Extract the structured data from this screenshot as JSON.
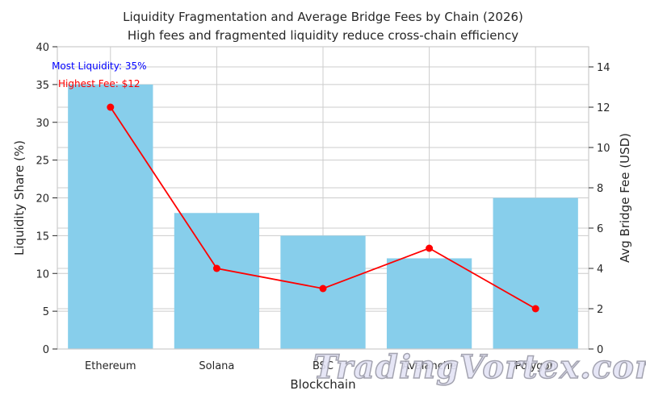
{
  "chart_data": {
    "type": "bar",
    "title": "Liquidity Fragmentation and Average Bridge Fees by Chain (2026)",
    "subtitle": "High fees and fragmented liquidity reduce cross-chain efficiency",
    "xlabel": "Blockchain",
    "ylabel": "Liquidity Share (%)",
    "y2label": "Avg Bridge Fee (USD)",
    "categories": [
      "Ethereum",
      "Solana",
      "BSC",
      "Avalanche",
      "Polygon"
    ],
    "series": [
      {
        "name": "Liquidity Share (%)",
        "type": "bar",
        "axis": "left",
        "color": "#87ceeb",
        "values": [
          35,
          18,
          15,
          12,
          20
        ]
      },
      {
        "name": "Avg Bridge Fee (USD)",
        "type": "line",
        "axis": "right",
        "color": "#ff0000",
        "values": [
          12,
          4,
          3,
          5,
          2
        ]
      }
    ],
    "ylim": [
      0,
      40
    ],
    "y2lim": [
      0,
      15
    ],
    "yticks": [
      0,
      5,
      10,
      15,
      20,
      25,
      30,
      35,
      40
    ],
    "y2ticks": [
      0,
      2,
      4,
      6,
      8,
      10,
      12,
      14
    ],
    "grid": true,
    "annotations": [
      {
        "text": "Most Liquidity: 35%",
        "color": "#0000ff"
      },
      {
        "text": "Highest Fee: $12",
        "color": "#ff0000"
      }
    ]
  },
  "watermark": "TradingVortex.com"
}
